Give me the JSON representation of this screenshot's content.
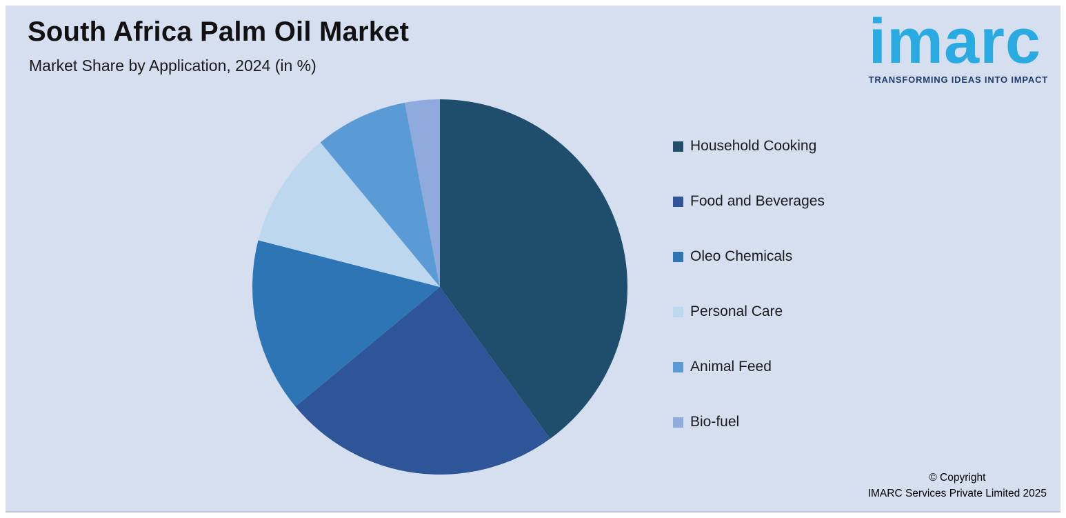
{
  "header": {
    "title": "South Africa Palm Oil Market",
    "subtitle": "Market Share by Application, 2024 (in %)"
  },
  "logo": {
    "text": "imarc",
    "tagline": "TRANSFORMING IDEAS INTO IMPACT",
    "word_color": "#29abe2",
    "tagline_color": "#1e3a6e"
  },
  "chart_data": {
    "type": "pie",
    "title": "South Africa Palm Oil Market",
    "subtitle": "Market Share by Application, 2024 (in %)",
    "unit": "%",
    "labels": [
      "Household Cooking",
      "Food and Beverages",
      "Oleo Chemicals",
      "Personal Care",
      "Animal Feed",
      "Bio-fuel"
    ],
    "values": [
      40,
      24,
      15,
      10,
      8,
      3
    ],
    "colors": [
      "#1f4e6d",
      "#2e5597",
      "#2e75b6",
      "#bdd7ee",
      "#5b9bd5",
      "#8faadc"
    ],
    "start_angle_deg": 0,
    "direction": "clockwise",
    "legend_position": "right",
    "data_labels_shown": false
  },
  "footer": {
    "copyright_line1": "© Copyright",
    "copyright_line2": "IMARC Services Private Limited 2025"
  },
  "theme": {
    "background": "#d5dff0",
    "frame": "#ffffff",
    "title_color": "#111111",
    "text_color": "#1a1a1a"
  }
}
